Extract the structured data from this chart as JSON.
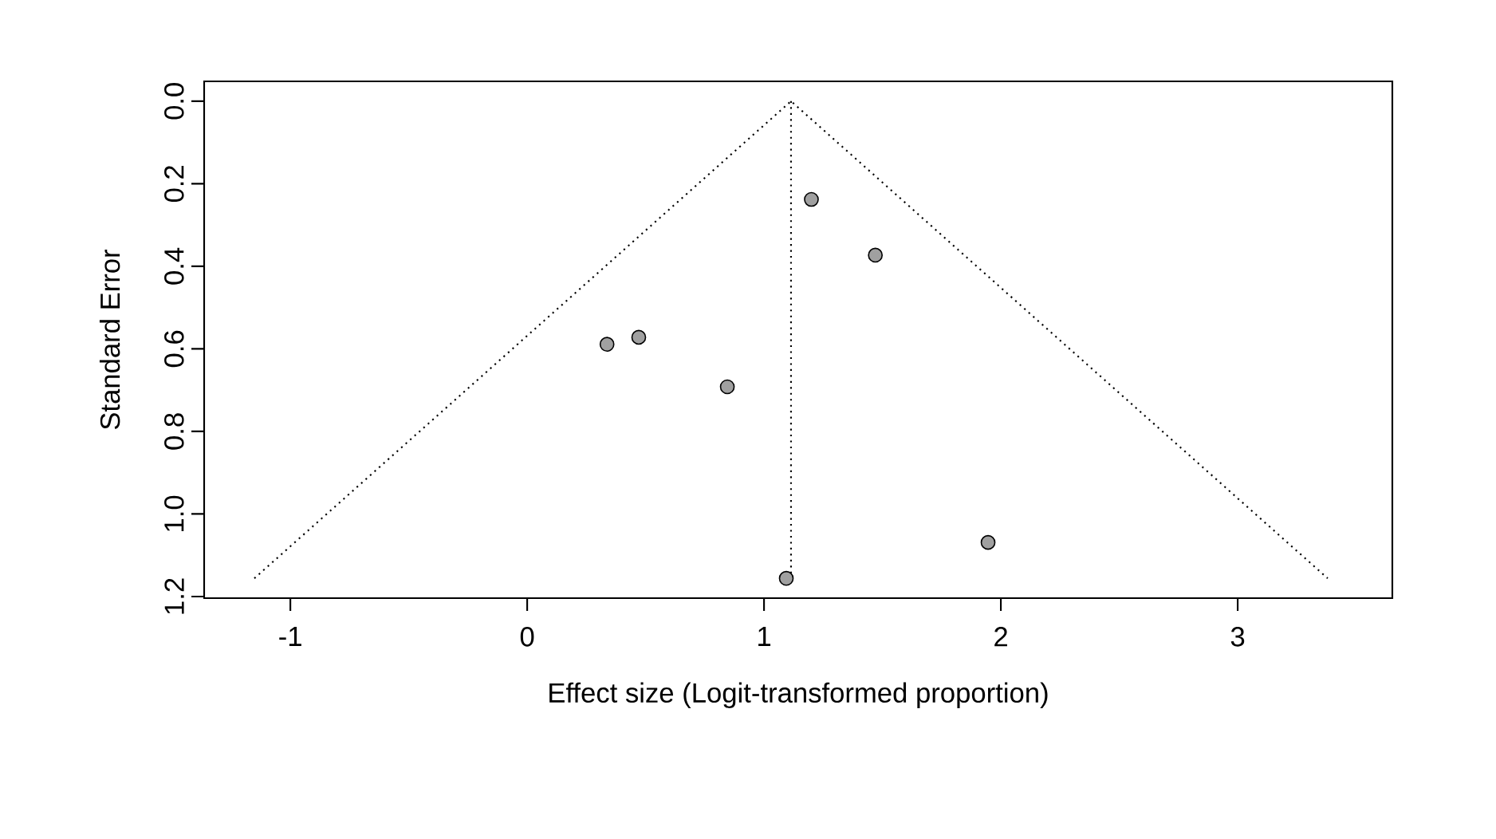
{
  "chart_data": {
    "type": "scatter",
    "xlabel": "Effect size (Logit-transformed proportion)",
    "ylabel": "Standard Error",
    "xlim": [
      -1.364,
      3.653
    ],
    "ylim": [
      1.204,
      -0.048
    ],
    "xticks": [
      -1,
      0,
      1,
      2,
      3
    ],
    "yticks": [
      {
        "value": 0,
        "label": "0.0"
      },
      0.2,
      0.4,
      0.6,
      0.8,
      {
        "value": 1,
        "label": "1.0"
      },
      1.2
    ],
    "series": [
      {
        "type": "line",
        "color": "#000000",
        "line_style": "dotted",
        "marker": "none",
        "x": [
          -1.152,
          1.114,
          3.38
        ],
        "values": [
          1.156,
          0,
          1.156
        ]
      },
      {
        "type": "line",
        "color": "#000000",
        "line_style": "dotted",
        "marker": "none",
        "x": [
          1.114,
          1.114
        ],
        "values": [
          0,
          1.156
        ]
      },
      {
        "color": "#a0a0a0",
        "marker": "circle",
        "x": [
          1.2,
          1.47,
          0.337,
          0.471,
          0.845,
          1.946,
          1.094
        ],
        "values": [
          0.238,
          0.373,
          0.589,
          0.572,
          0.692,
          1.069,
          1.156
        ]
      }
    ]
  }
}
